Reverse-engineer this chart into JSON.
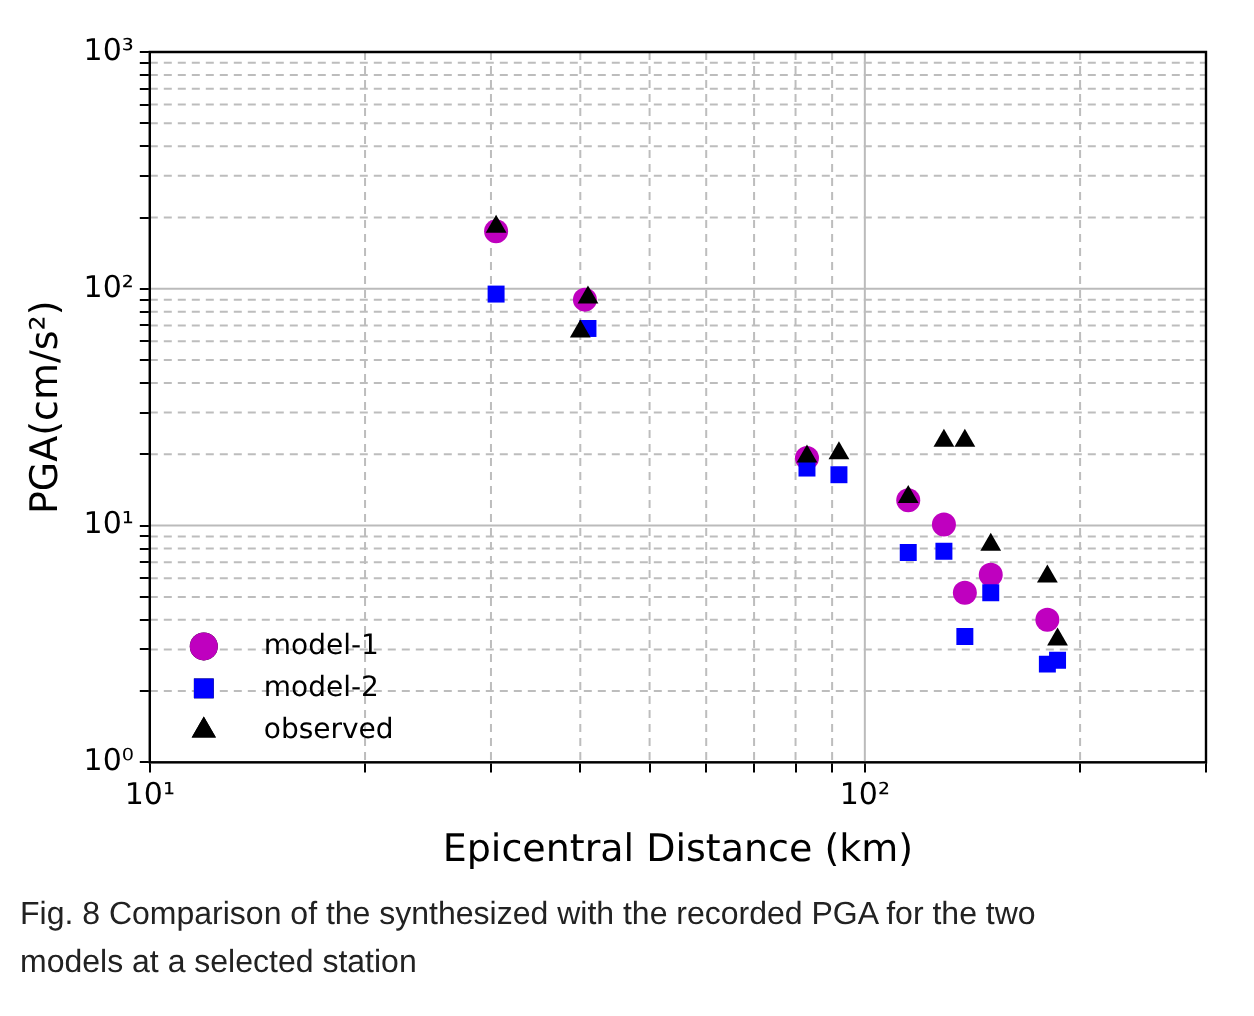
{
  "chart_data": {
    "type": "scatter",
    "xlabel": "Epicentral Distance (km)",
    "ylabel": "PGA(cm/s²)",
    "log": "xy",
    "grid": true,
    "legend": "bottom left",
    "xlim": [
      10,
      300
    ],
    "xticks": [
      {
        "value": 10,
        "label": "10¹"
      },
      {
        "value": 20,
        "label": null
      },
      {
        "value": 30,
        "label": null
      },
      {
        "value": 40,
        "label": null
      },
      {
        "value": 50,
        "label": null
      },
      {
        "value": 60,
        "label": null
      },
      {
        "value": 70,
        "label": null
      },
      {
        "value": 80,
        "label": null
      },
      {
        "value": 90,
        "label": null
      },
      {
        "value": 100,
        "label": "10²"
      },
      {
        "value": 200,
        "label": null
      },
      {
        "value": 300,
        "label": null
      }
    ],
    "ylim": [
      1,
      1000
    ],
    "yticks": [
      {
        "value": 1,
        "label": "10⁰"
      },
      {
        "value": 2,
        "label": null
      },
      {
        "value": 3,
        "label": null
      },
      {
        "value": 4,
        "label": null
      },
      {
        "value": 5,
        "label": null
      },
      {
        "value": 6,
        "label": null
      },
      {
        "value": 7,
        "label": null
      },
      {
        "value": 8,
        "label": null
      },
      {
        "value": 9,
        "label": null
      },
      {
        "value": 10,
        "label": "10¹"
      },
      {
        "value": 20,
        "label": null
      },
      {
        "value": 30,
        "label": null
      },
      {
        "value": 40,
        "label": null
      },
      {
        "value": 50,
        "label": null
      },
      {
        "value": 60,
        "label": null
      },
      {
        "value": 70,
        "label": null
      },
      {
        "value": 80,
        "label": null
      },
      {
        "value": 90,
        "label": null
      },
      {
        "value": 100,
        "label": "10²"
      },
      {
        "value": 200,
        "label": null
      },
      {
        "value": 300,
        "label": null
      },
      {
        "value": 400,
        "label": null
      },
      {
        "value": 500,
        "label": null
      },
      {
        "value": 600,
        "label": null
      },
      {
        "value": 700,
        "label": null
      },
      {
        "value": 800,
        "label": null
      },
      {
        "value": 900,
        "label": null
      },
      {
        "value": 1000,
        "label": "10³"
      }
    ],
    "series": [
      {
        "name": "model-1",
        "color": "#bf00bf",
        "marker": "circle",
        "x": [
          30.5,
          40.6,
          83,
          115,
          129,
          138,
          150,
          180
        ],
        "values": [
          175,
          90,
          19.3,
          12.8,
          10.1,
          5.2,
          6.2,
          4.0
        ]
      },
      {
        "name": "model-2",
        "color": "#0000ff",
        "marker": "square",
        "x": [
          30.5,
          41,
          83,
          92,
          115,
          129,
          138,
          150,
          180,
          186
        ],
        "values": [
          95,
          68,
          17.5,
          16.4,
          7.7,
          7.8,
          3.4,
          5.2,
          2.6,
          2.7
        ]
      },
      {
        "name": "observed",
        "color": "#000000",
        "marker": "triangle",
        "x": [
          30.5,
          41,
          40,
          83,
          92,
          115,
          129,
          138,
          150,
          180,
          186
        ],
        "values": [
          183,
          92,
          66,
          19.6,
          20.2,
          13.2,
          22.8,
          22.8,
          8.3,
          6.1,
          3.3
        ]
      }
    ],
    "annotations": [
      "Fig. 8  Comparison of the synthesized with the recorded PGA for the two models at a selected station"
    ]
  }
}
